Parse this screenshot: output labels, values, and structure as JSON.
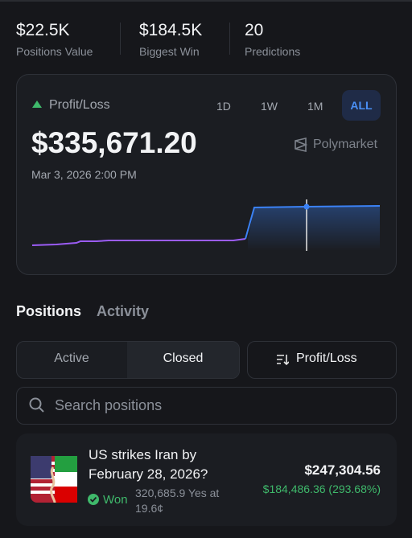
{
  "stats": [
    {
      "value": "$22.5K",
      "label": "Positions Value"
    },
    {
      "value": "$184.5K",
      "label": "Biggest Win"
    },
    {
      "value": "20",
      "label": "Predictions"
    }
  ],
  "card": {
    "title": "Profit/Loss",
    "ranges": [
      "1D",
      "1W",
      "1M",
      "ALL"
    ],
    "value": "$335,671.20",
    "brand": "Polymarket",
    "date": "Mar 3, 2026 2:00 PM"
  },
  "tabs": [
    "Positions",
    "Activity"
  ],
  "filters": {
    "segments": [
      "Active",
      "Closed"
    ],
    "sort": "Profit/Loss"
  },
  "search": {
    "placeholder": "Search positions"
  },
  "positions": [
    {
      "title": "US strikes Iran by February 28, 2026?",
      "status": "Won",
      "shares": "320,685.9 Yes at 19.6¢",
      "value": "$247,304.56",
      "pnl": "$184,486.36 (293.68%)"
    }
  ]
}
